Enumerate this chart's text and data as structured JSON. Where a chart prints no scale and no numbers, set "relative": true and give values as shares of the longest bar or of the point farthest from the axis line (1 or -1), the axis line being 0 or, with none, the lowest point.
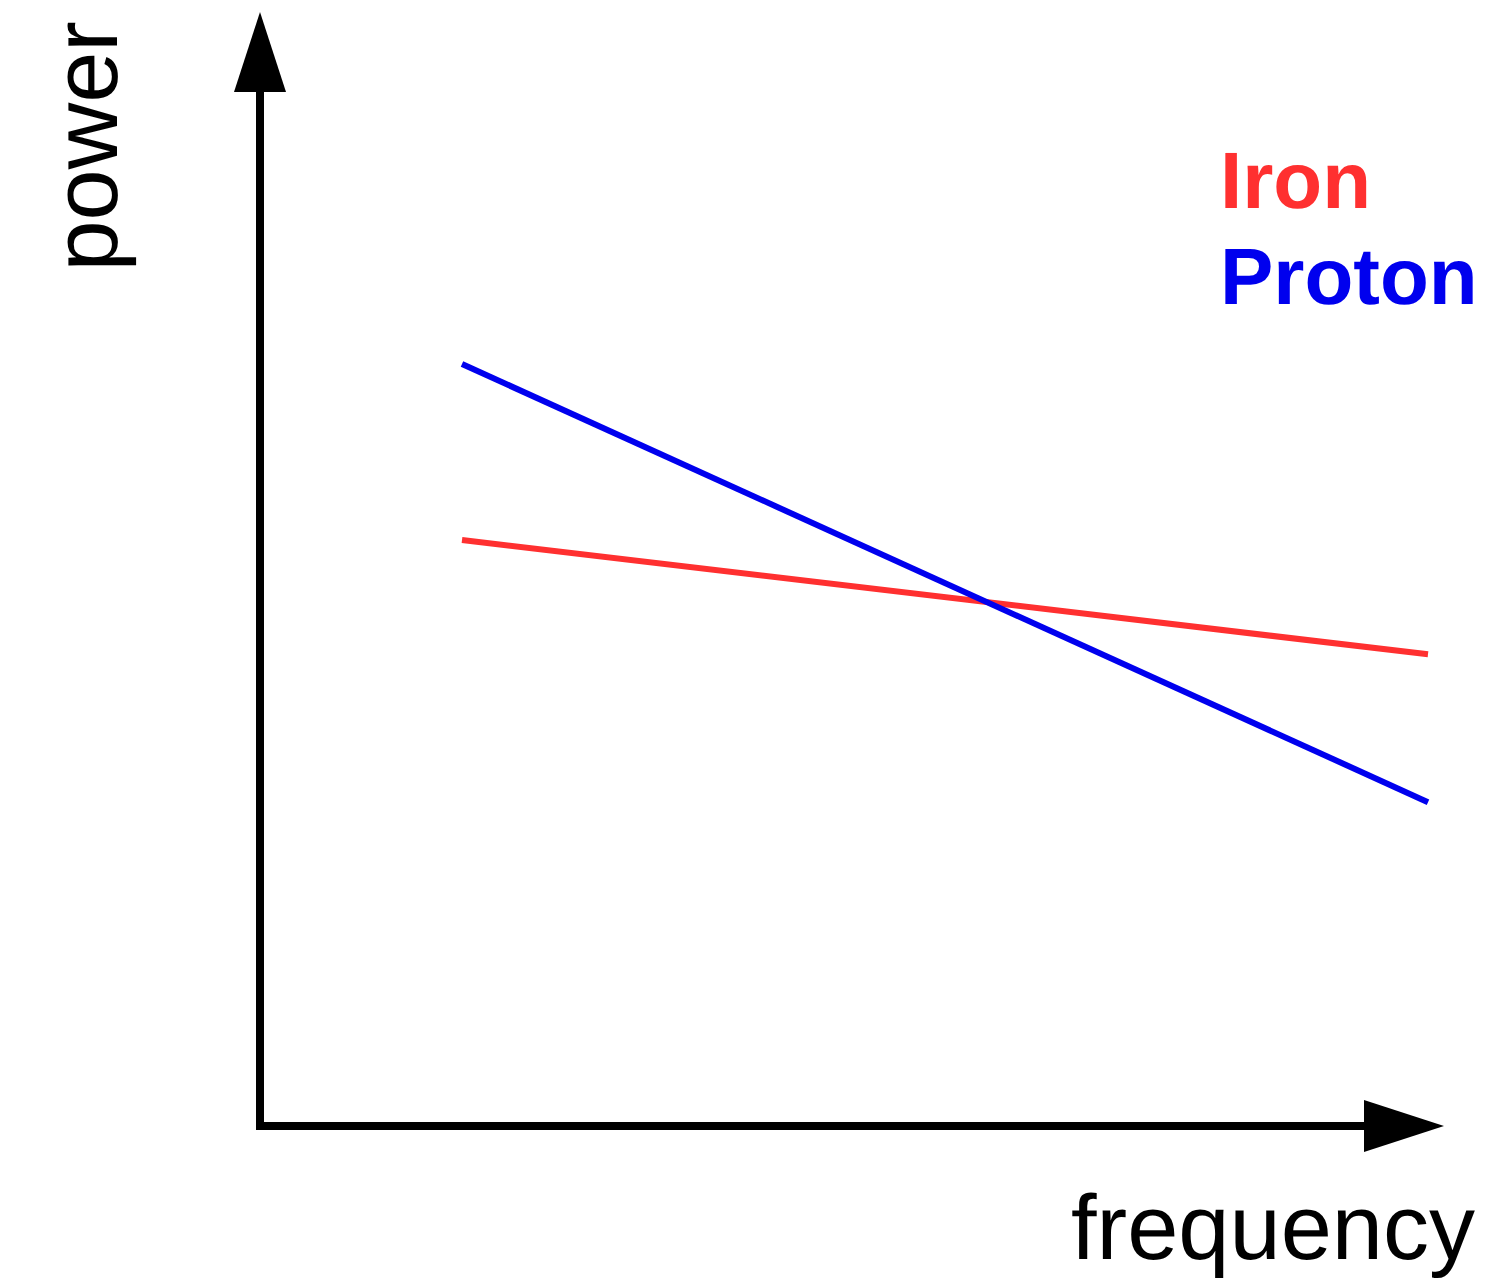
{
  "chart_data": {
    "type": "line",
    "xlabel": "frequency",
    "ylabel": "power",
    "categories": [
      null,
      null
    ],
    "relative": true,
    "legend": "top right",
    "grid": false,
    "series": [
      {
        "name": "Iron",
        "color": "#ff3030",
        "values": [
          0.769,
          0.619
        ]
      },
      {
        "name": "Proton",
        "color": "#0000ee",
        "values": [
          1,
          0.425
        ]
      }
    ]
  }
}
